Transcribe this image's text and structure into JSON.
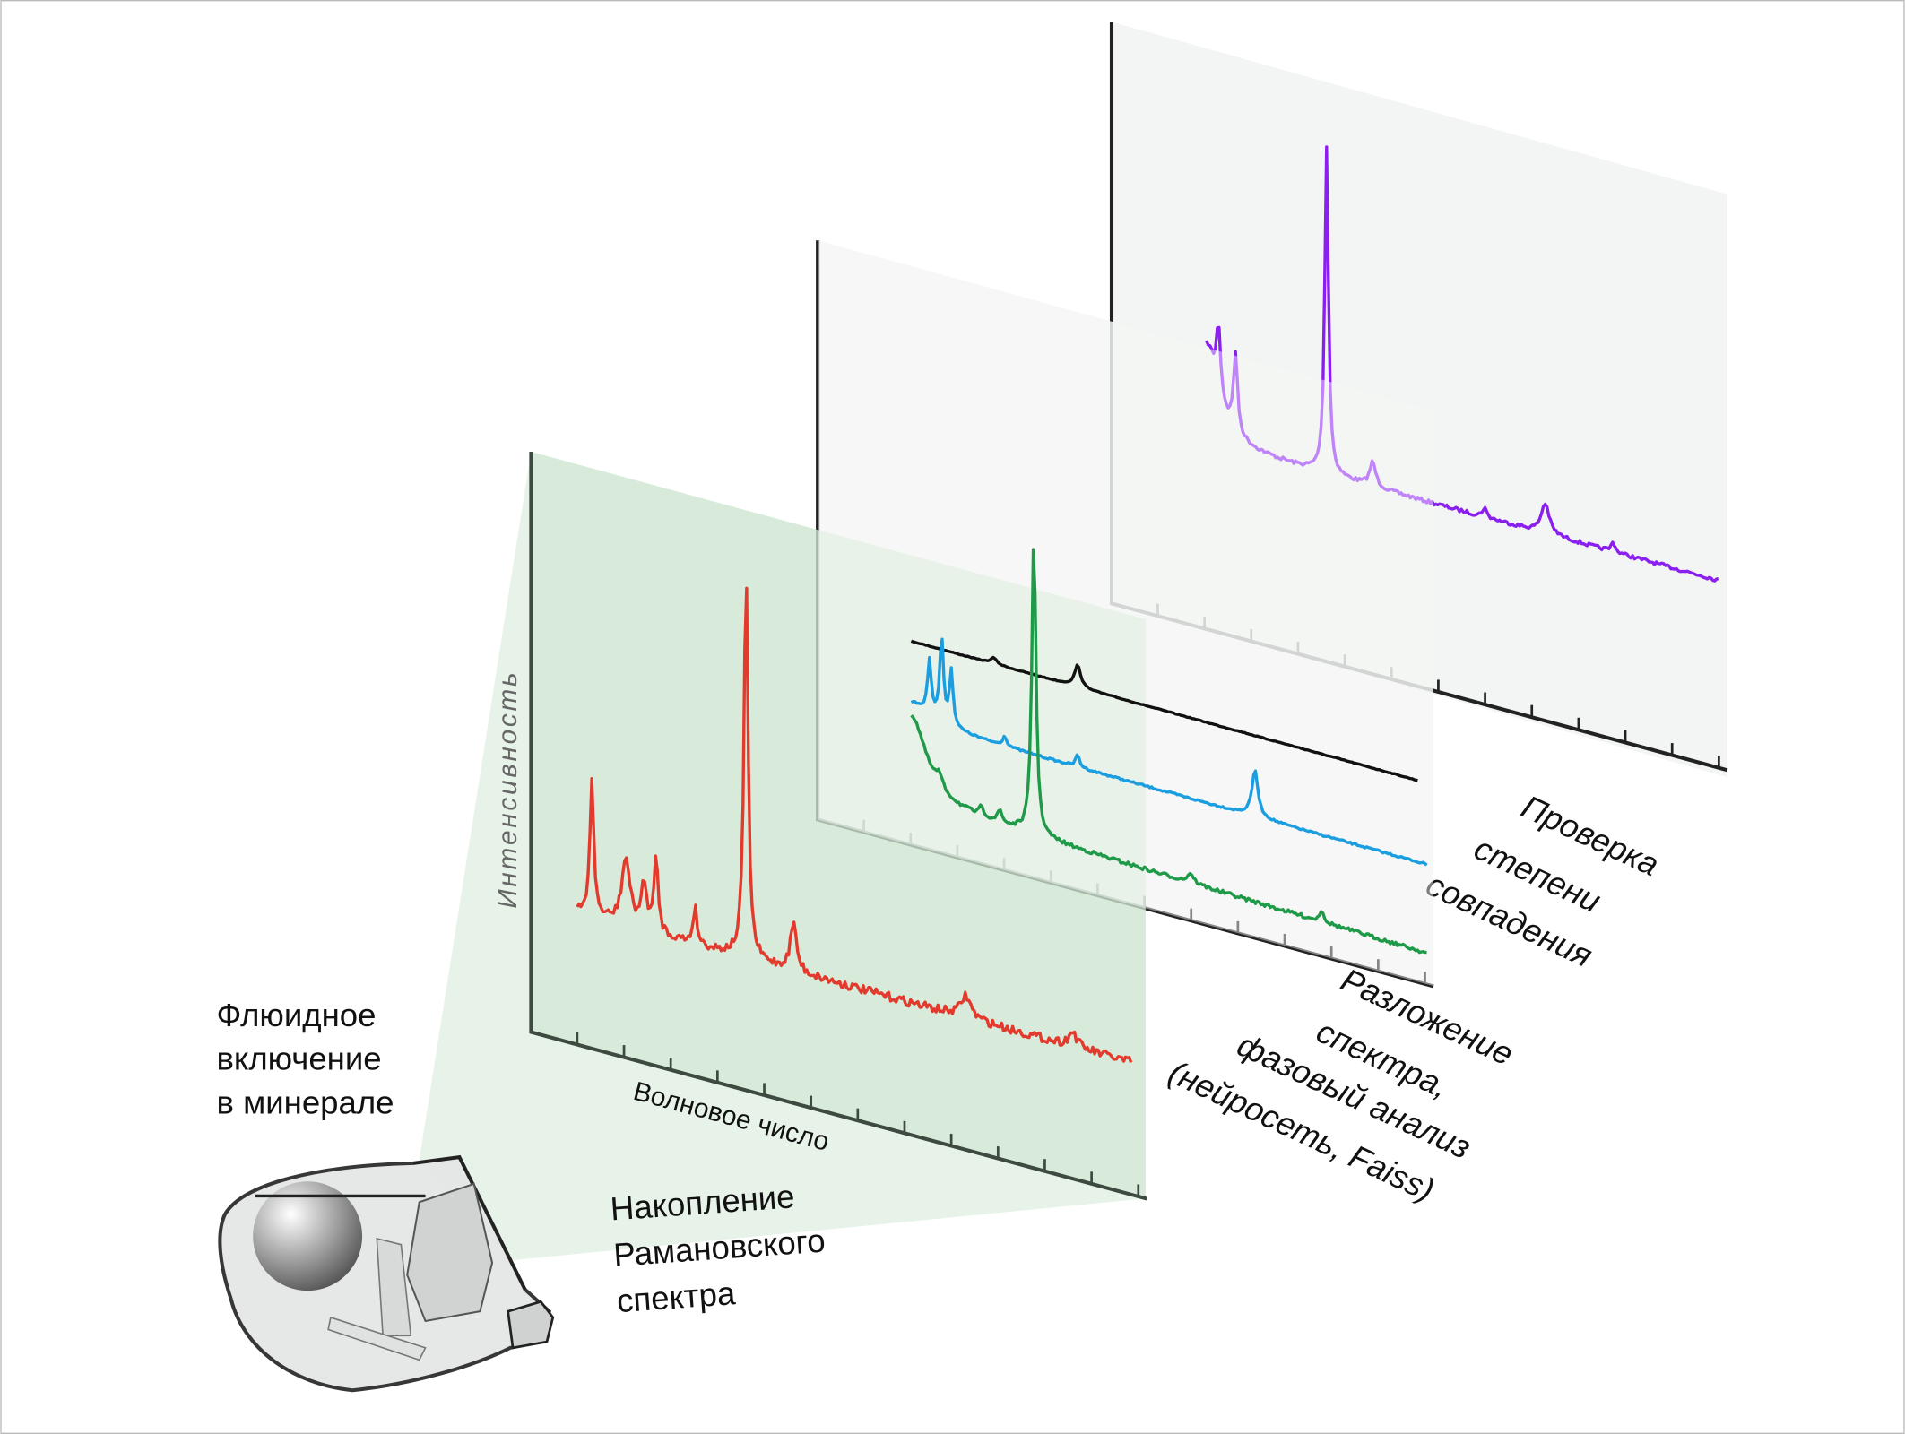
{
  "labels": {
    "inclusion": [
      "Флюидное",
      "включение",
      "в минерале"
    ],
    "accumulation": [
      "Накопление",
      "Рамановского",
      "спектра"
    ],
    "x_axis": "Волновое число",
    "y_axis": "Интенсивность",
    "decomposition": [
      "Разложение",
      "спектра,",
      "фазовый анализ",
      "(нейросеть, Faiss)"
    ],
    "matching": [
      "Проверка",
      "степени",
      "совпадения"
    ]
  }
}
